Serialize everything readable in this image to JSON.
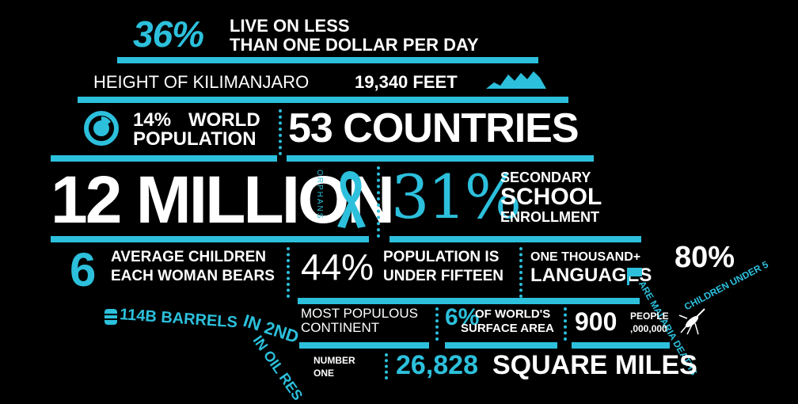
{
  "stat_poverty": {
    "value": "36%",
    "line1": "LIVE ON LESS",
    "line2": "THAN  ONE DOLLAR PER DAY"
  },
  "stat_kilimanjaro": {
    "label": "HEIGHT OF KILIMANJARO",
    "value": "19,340 FEET"
  },
  "stat_world_pop": {
    "value": "14%",
    "label1": "WORLD",
    "label2": "POPULATION"
  },
  "stat_countries": {
    "value": "53 COUNTRIES"
  },
  "stat_orphans": {
    "value": "12 MILLION",
    "vertical_text": "ORPHANS"
  },
  "stat_school": {
    "value": "31%",
    "line1": "SECONDARY",
    "line2": "SCHOOL",
    "line3": "ENROLLMENT"
  },
  "stat_children": {
    "value": "6",
    "line1": "AVERAGE CHILDREN",
    "line2": "EACH WOMAN BEARS"
  },
  "stat_under15": {
    "value": "44%",
    "line1": "POPULATION IS",
    "line2": "UNDER FIFTEEN"
  },
  "stat_languages": {
    "line1": "ONE THOUSAND+",
    "line2": "LANGUAGES"
  },
  "stat_malaria": {
    "value": "80%",
    "curve_text": "ARE MALARIA DEATHS",
    "curve_text2": "CHILDREN UNDER 5"
  },
  "stat_oil": {
    "value": "114B BARRELS",
    "line2": "IN 2ND",
    "line3": "IN OIL RES"
  },
  "stat_continent": {
    "line1": "MOST POPULOUS",
    "line2": "CONTINENT",
    "rank": "2ND"
  },
  "stat_surface": {
    "value": "6%",
    "line1": "OF WORLD'S",
    "line2": "SURFACE AREA"
  },
  "stat_people": {
    "value": "900",
    "unit": "PEOPLE",
    "suffix": ",000,000"
  },
  "stat_number_one": {
    "line1": "NUMBER",
    "line2": "ONE"
  },
  "stat_area": {
    "value": "26,828",
    "unit": "SQUARE MILES"
  },
  "colors": {
    "accent": "#2cc0dc",
    "background": "#000000",
    "text": "#ffffff"
  }
}
